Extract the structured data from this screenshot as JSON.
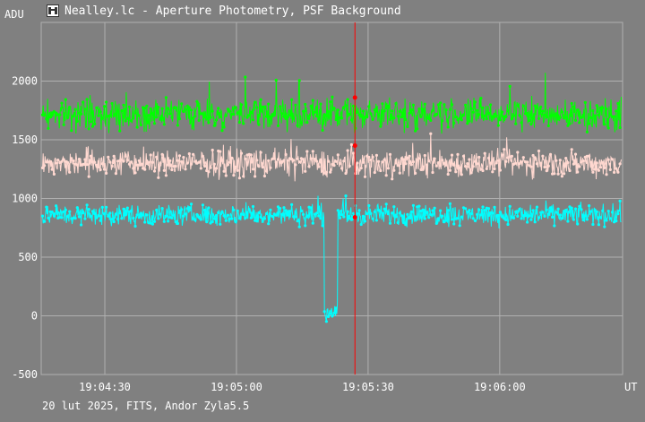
{
  "window": {
    "title": "Nealley.lc - Aperture Photometry, PSF Background",
    "icon": "telescope-app-icon"
  },
  "footer": {
    "caption": "20 lut 2025, FITS, Andor Zyla5.5"
  },
  "chart_data": {
    "type": "line",
    "title": "Nealley.lc - Aperture Photometry, PSF Background",
    "ylabel": "ADU",
    "xlabel": "UT",
    "ylim": [
      -500,
      2500
    ],
    "xlim_seconds": [
      255.5,
      388.0
    ],
    "x_ticks": [
      {
        "t": 270,
        "label": "19:04:30"
      },
      {
        "t": 300,
        "label": "19:05:00"
      },
      {
        "t": 330,
        "label": "19:05:30"
      },
      {
        "t": 360,
        "label": "19:06:00"
      }
    ],
    "y_ticks": [
      -500,
      0,
      500,
      1000,
      1500,
      2000
    ],
    "grid": true,
    "cursor_time": "19:05:27",
    "series": [
      {
        "color": "#00ff00",
        "level": 1720,
        "noise": 110,
        "values": []
      },
      {
        "color": "#ffd8d0",
        "level": 1300,
        "noise": 95,
        "values": []
      },
      {
        "color": "#00ffff",
        "level": 860,
        "noise": 75,
        "dip": {
          "from": "19:05:20",
          "to": "19:05:23",
          "level": 30
        },
        "values": []
      }
    ],
    "markers": [
      {
        "t": 327,
        "value": 1860,
        "color": "#ff0000"
      },
      {
        "t": 327,
        "value": 1450,
        "color": "#ff0000"
      },
      {
        "t": 327,
        "value": 840,
        "color": "#ff0000"
      }
    ]
  },
  "colors": {
    "background": "#808080",
    "grid": "#b0b0b0",
    "cursor": "#ff0000",
    "text": "#ffffff"
  }
}
